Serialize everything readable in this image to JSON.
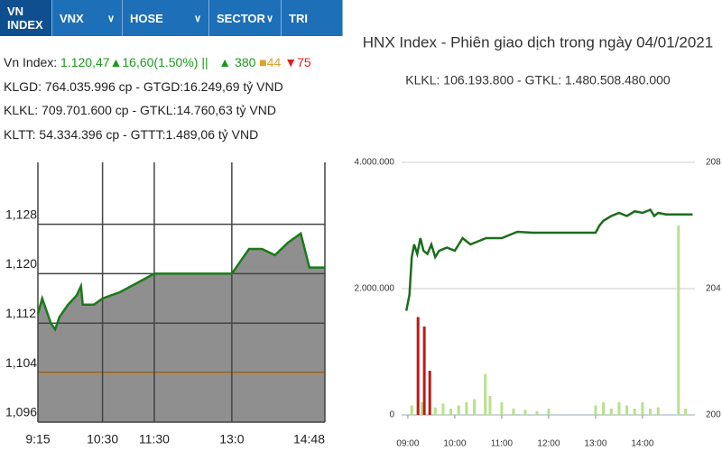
{
  "tabs": [
    "VN INDEX",
    "VNX",
    "HOSE",
    "SECTOR",
    "TRI"
  ],
  "info": {
    "index_label": "Vn Index:",
    "index_value": "1.120,47▲16,60(1.50%) ||",
    "advances": "▲ 380",
    "unchanged": "■44",
    "declines": "▼75",
    "lines": [
      "KLGD: 764.035.996 cp - GTGD:16.249,69 tỷ VND",
      "KLKL: 709.701.600 cp - GTKL:14.760,63 tỷ VND",
      "KLTT: 54.334.396 cp - GTTT:1.489,06 tỷ VND"
    ]
  },
  "chart_data": [
    {
      "type": "area",
      "xlim": [
        555,
        888
      ],
      "ylim": [
        1096,
        1138
      ],
      "xticks": [
        {
          "value": 555,
          "label": "9:15"
        },
        {
          "value": 630,
          "label": "10:30"
        },
        {
          "value": 690,
          "label": "11:30"
        },
        {
          "value": 780,
          "label": "13:0"
        },
        {
          "value": 888,
          "label": "14:48"
        }
      ],
      "yticks": [
        {
          "value": 1096,
          "label": "1,096"
        },
        {
          "value": 1104,
          "label": "1,104"
        },
        {
          "value": 1112,
          "label": "1,112"
        },
        {
          "value": 1120,
          "label": "1,120"
        },
        {
          "value": 1128,
          "label": "1,128"
        }
      ],
      "reference": 1103.87,
      "reference_color": "#d08020",
      "grid": true,
      "series": [
        {
          "color": "#1a7a1a",
          "fill": "#8f8f8f",
          "x": [
            555,
            560,
            570,
            575,
            580,
            590,
            600,
            605,
            607,
            620,
            630,
            650,
            670,
            690,
            780,
            790,
            800,
            815,
            830,
            845,
            855,
            860,
            870,
            875,
            888
          ],
          "values": [
            1113.5,
            1116,
            1112,
            1111,
            1113,
            1115,
            1116.5,
            1118,
            1115,
            1115,
            1116,
            1117,
            1118.5,
            1120,
            1120,
            1122,
            1124,
            1124,
            1123,
            1125,
            1126,
            1126.5,
            1121,
            1121,
            1121
          ]
        }
      ]
    },
    {
      "type": "combo",
      "title": "HNX Index - Phiên giao dịch trong ngày 04/01/2021",
      "subtitle": "KLKL: 106.193.800 - GTKL: 1.480.508.480.000",
      "xlim": [
        532,
        907
      ],
      "ylim": [
        0,
        4000000
      ],
      "y2lim": [
        200,
        208
      ],
      "xticks": [
        {
          "value": 540,
          "label": "09:00"
        },
        {
          "value": 600,
          "label": "10:00"
        },
        {
          "value": 660,
          "label": "11:00"
        },
        {
          "value": 720,
          "label": "12:00"
        },
        {
          "value": 780,
          "label": "13:00"
        },
        {
          "value": 840,
          "label": "14:00"
        }
      ],
      "yticks": [
        0,
        {
          "value": 2000000,
          "label": "2.000.000"
        },
        {
          "value": 4000000,
          "label": "4.000.000"
        }
      ],
      "y2ticks": [
        200,
        204,
        208
      ],
      "grid": true,
      "series": [
        {
          "color": "#b8e08a",
          "x": [
            545,
            558,
            575,
            585,
            595,
            605,
            615,
            625,
            639,
            645,
            660,
            675,
            690,
            705,
            720,
            780,
            790,
            800,
            810,
            820,
            830,
            840,
            850,
            860,
            886,
            895
          ],
          "values": [
            150000,
            200000,
            120000,
            180000,
            100000,
            150000,
            200000,
            250000,
            650000,
            300000,
            200000,
            100000,
            80000,
            60000,
            100000,
            150000,
            200000,
            100000,
            200000,
            150000,
            100000,
            200000,
            100000,
            120000,
            3000000,
            100000
          ]
        },
        {
          "color": "#c01818",
          "x": [
            553,
            561,
            568
          ],
          "values": [
            1550000,
            1400000,
            700000
          ]
        },
        {
          "color": "#1a6e1a",
          "axis": "y2",
          "x": [
            538,
            542,
            545,
            548,
            552,
            556,
            560,
            565,
            570,
            575,
            580,
            590,
            600,
            610,
            615,
            620,
            630,
            640,
            660,
            670,
            680,
            700,
            720,
            780,
            785,
            790,
            800,
            810,
            820,
            830,
            840,
            850,
            855,
            860,
            870,
            904
          ],
          "values": [
            203.3,
            203.8,
            205.0,
            205.4,
            205.1,
            205.6,
            205.2,
            205.1,
            205.4,
            205.0,
            205.2,
            205.3,
            205.2,
            205.6,
            205.5,
            205.4,
            205.5,
            205.6,
            205.6,
            205.7,
            205.8,
            205.77,
            205.77,
            205.77,
            206.0,
            206.15,
            206.3,
            206.4,
            206.3,
            206.45,
            206.4,
            206.5,
            206.3,
            206.4,
            206.35,
            206.35
          ]
        }
      ]
    }
  ]
}
